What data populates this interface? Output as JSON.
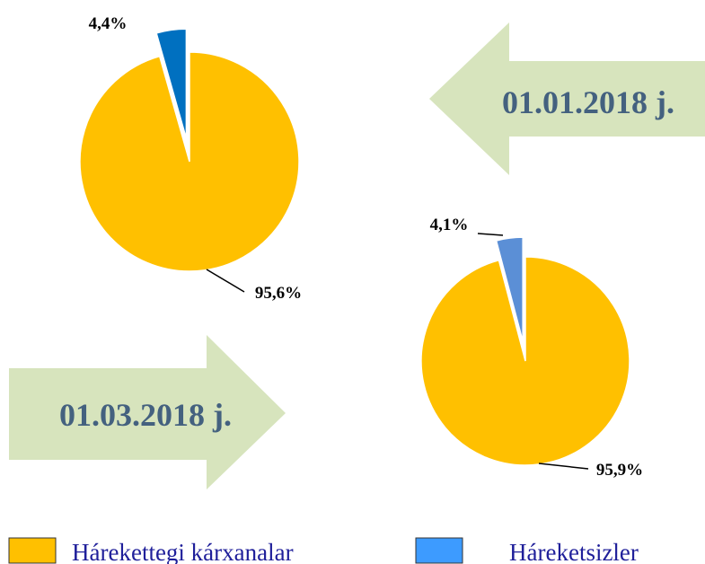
{
  "legend": [
    {
      "name": "Hárekettegi kárxanalar",
      "color": "#ffc000"
    },
    {
      "name": "Háreketsizler",
      "color": "#3d9bff"
    }
  ],
  "chart_data": [
    {
      "type": "pie",
      "annotation": "01.01.2018 j.",
      "values": [
        95.6,
        4.4
      ],
      "value_labels": [
        "95,6%",
        "4,4%"
      ],
      "colors": [
        "#ffc000",
        "#0070c0"
      ],
      "explode": [
        false,
        true
      ]
    },
    {
      "type": "pie",
      "annotation": "01.03.2018 j.",
      "values": [
        95.9,
        4.1
      ],
      "value_labels": [
        "95,9%",
        "4,1%"
      ],
      "colors": [
        "#ffc000",
        "#5b8fd6"
      ],
      "explode": [
        false,
        true
      ]
    }
  ]
}
